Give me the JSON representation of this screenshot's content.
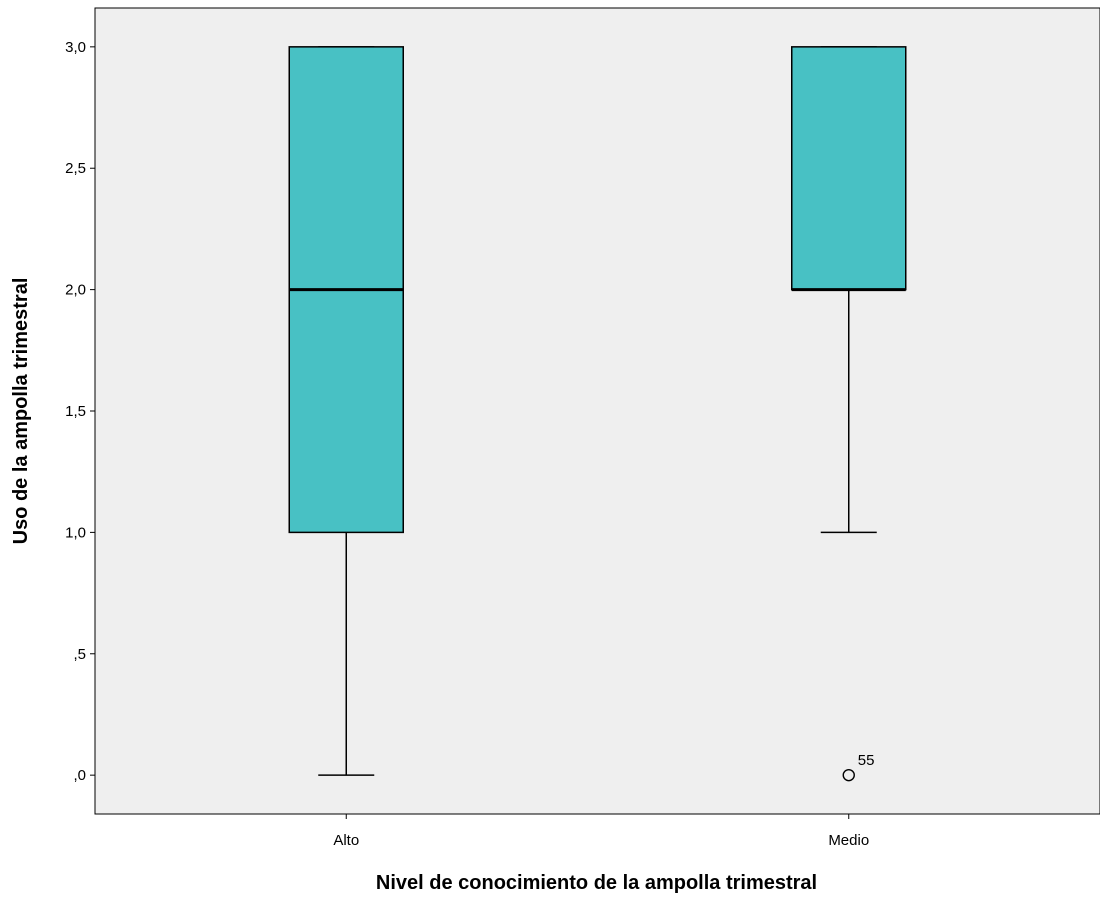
{
  "chart_data": {
    "type": "boxplot",
    "xlabel": "Nivel de conocimiento de la ampolla trimestral",
    "ylabel": "Uso de la ampolla trimestral",
    "ylim": [
      -0.16,
      3.16
    ],
    "yticks": [
      0,
      0.5,
      1,
      1.5,
      2,
      2.5,
      3
    ],
    "ytick_labels": [
      ",0",
      ",5",
      "1,0",
      "1,5",
      "2,0",
      "2,5",
      "3,0"
    ],
    "categories": [
      "Alto",
      "Medio"
    ],
    "boxes": [
      {
        "category": "Alto",
        "whisker_low": 0,
        "q1": 1,
        "median": 2,
        "q3": 3,
        "whisker_high": 3,
        "outliers": []
      },
      {
        "category": "Medio",
        "whisker_low": 1,
        "q1": 2,
        "median": 2,
        "q3": 3,
        "whisker_high": 3,
        "outliers": [
          {
            "value": 0,
            "label": "55"
          }
        ]
      }
    ],
    "box_color": "#48c1c4",
    "plot_background": "#efefef",
    "grid": false
  }
}
